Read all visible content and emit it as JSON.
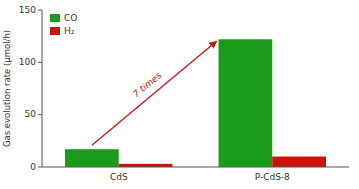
{
  "chart_data": {
    "type": "bar",
    "categories": [
      "CdS",
      "P-CdS-8"
    ],
    "series": [
      {
        "name": "CO",
        "color": "#1a9c1a",
        "values": [
          17,
          122
        ]
      },
      {
        "name": "H₂",
        "color": "#cc1111",
        "values": [
          3,
          10
        ]
      }
    ],
    "y_label": "Gas evolution rate (μmol/h)",
    "ylim": [
      0,
      150
    ],
    "yticks": [
      0,
      50,
      100,
      150
    ],
    "legend": "upper left",
    "annotation": "7 times"
  }
}
